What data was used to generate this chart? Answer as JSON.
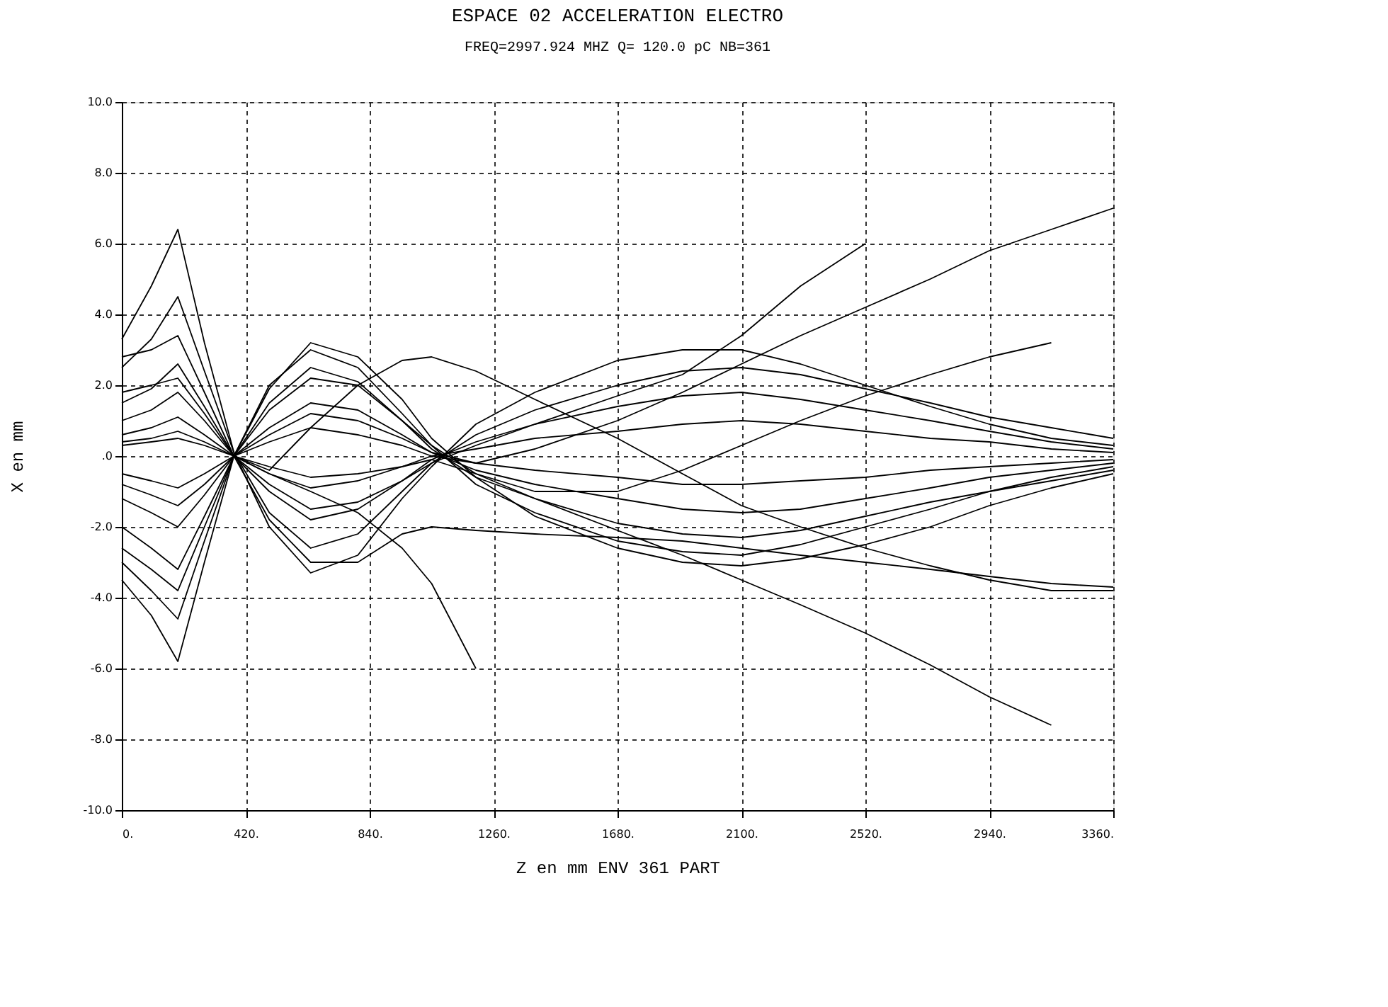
{
  "chart_data": {
    "type": "line",
    "title": "ESPACE 02 ACCELERATION ELECTRO",
    "subtitle": "FREQ=2997.924 MHZ  Q=  120.0 pC  NB=361",
    "xlabel": "Z en mm  ENV 361 PART",
    "ylabel": "X en mm",
    "x": [
      0,
      100,
      190,
      280,
      380,
      500,
      640,
      800,
      950,
      1050,
      1200,
      1400,
      1680,
      1900,
      2100,
      2300,
      2520,
      2740,
      2940,
      3150,
      3360
    ],
    "series": [
      {
        "color": "#000000",
        "values": [
          3.3,
          4.8,
          6.4,
          3.2,
          0.1,
          -2.0,
          -3.3,
          -2.8,
          -1.2,
          -0.3,
          0.9,
          1.8,
          2.7,
          3.0,
          3.0,
          2.6,
          2.0,
          1.4,
          0.9,
          0.5,
          0.3
        ]
      },
      {
        "color": "#000000",
        "values": [
          -3.5,
          -4.5,
          -5.8,
          -3.0,
          0.0,
          2.0,
          3.0,
          2.5,
          1.2,
          0.3,
          -0.8,
          -1.6,
          -2.4,
          -2.7,
          -2.8,
          -2.5,
          -2.0,
          -1.5,
          -1.0,
          -0.6,
          -0.3
        ]
      },
      {
        "color": "#000000",
        "values": [
          2.5,
          3.3,
          4.5,
          2.4,
          0.1,
          -1.6,
          -2.6,
          -2.2,
          -1.0,
          -0.2,
          0.6,
          1.3,
          2.0,
          2.4,
          2.5,
          2.3,
          1.9,
          1.5,
          1.1,
          0.8,
          0.5
        ]
      },
      {
        "color": "#000000",
        "values": [
          -2.6,
          -3.2,
          -3.8,
          -2.0,
          0.0,
          1.5,
          2.5,
          2.1,
          1.0,
          0.2,
          -0.6,
          -1.2,
          -1.9,
          -2.2,
          -2.3,
          -2.1,
          -1.7,
          -1.3,
          -1.0,
          -0.7,
          -0.4
        ]
      },
      {
        "color": "#000000",
        "values": [
          1.5,
          1.9,
          2.6,
          1.4,
          0.0,
          -1.0,
          -1.8,
          -1.5,
          -0.7,
          -0.1,
          0.4,
          0.9,
          1.4,
          1.7,
          1.8,
          1.6,
          1.3,
          1.0,
          0.7,
          0.4,
          0.2
        ]
      },
      {
        "color": "#000000",
        "values": [
          -1.2,
          -1.6,
          -2.0,
          -1.1,
          0.0,
          0.8,
          1.5,
          1.3,
          0.6,
          0.1,
          -0.4,
          -0.8,
          -1.2,
          -1.5,
          -1.6,
          -1.5,
          -1.2,
          -0.9,
          -0.6,
          -0.4,
          -0.2
        ]
      },
      {
        "color": "#000000",
        "values": [
          0.6,
          0.8,
          1.1,
          0.6,
          0.0,
          -0.5,
          -0.9,
          -0.7,
          -0.3,
          0.0,
          0.2,
          0.5,
          0.7,
          0.9,
          1.0,
          0.9,
          0.7,
          0.5,
          0.4,
          0.2,
          0.1
        ]
      },
      {
        "color": "#000000",
        "values": [
          -0.5,
          -0.7,
          -0.9,
          -0.5,
          0.0,
          0.4,
          0.8,
          0.6,
          0.3,
          0.0,
          -0.2,
          -0.4,
          -0.6,
          -0.8,
          -0.8,
          -0.7,
          -0.6,
          -0.4,
          -0.3,
          -0.2,
          -0.1
        ]
      },
      {
        "color": "#000000",
        "values": [
          1.0,
          1.3,
          1.8,
          1.0,
          0.0,
          -0.8,
          -1.5,
          -1.3,
          -0.7,
          -0.2,
          0.3,
          0.9,
          1.7,
          2.3,
          3.4,
          4.8,
          6.0,
          null,
          null,
          null,
          null
        ]
      },
      {
        "color": "#000000",
        "values": [
          -0.8,
          -1.1,
          -1.4,
          -0.8,
          0.0,
          0.6,
          1.2,
          1.0,
          0.5,
          0.1,
          -0.2,
          0.2,
          1.0,
          1.8,
          2.6,
          3.4,
          4.2,
          5.0,
          5.8,
          6.4,
          7.0
        ]
      },
      {
        "color": "#000000",
        "values": [
          0.4,
          0.5,
          0.7,
          0.4,
          0.0,
          -0.3,
          -0.6,
          -0.5,
          -0.3,
          -0.1,
          -0.5,
          -1.2,
          -2.1,
          -2.8,
          -3.5,
          -4.2,
          -5.0,
          -5.9,
          -6.8,
          -7.6,
          null
        ]
      },
      {
        "color": "#000000",
        "values": [
          0.3,
          0.4,
          0.5,
          0.3,
          0.0,
          -0.5,
          -1.0,
          -1.6,
          -2.6,
          -3.6,
          -6.0,
          null,
          null,
          null,
          null,
          null,
          null,
          null,
          null,
          null,
          null
        ]
      },
      {
        "color": "#000000",
        "values": [
          -2.0,
          -2.6,
          -3.2,
          -1.7,
          0.0,
          1.3,
          2.2,
          2.0,
          1.0,
          0.3,
          -0.5,
          -1.0,
          -1.0,
          -0.4,
          0.3,
          1.0,
          1.7,
          2.3,
          2.8,
          3.2,
          null
        ]
      },
      {
        "color": "#000000",
        "values": [
          1.8,
          2.0,
          2.2,
          1.2,
          0.0,
          -0.4,
          0.8,
          2.0,
          2.7,
          2.8,
          2.4,
          1.6,
          0.5,
          -0.5,
          -1.4,
          -2.0,
          -2.6,
          -3.1,
          -3.5,
          -3.8,
          -3.8
        ]
      },
      {
        "color": "#000000",
        "values": [
          2.8,
          3.0,
          3.4,
          1.8,
          0.0,
          -1.8,
          -3.0,
          -3.0,
          -2.2,
          -2.0,
          -2.1,
          -2.2,
          -2.3,
          -2.4,
          -2.6,
          -2.8,
          -3.0,
          -3.2,
          -3.4,
          -3.6,
          -3.7
        ]
      },
      {
        "color": "#000000",
        "values": [
          -3.0,
          -3.8,
          -4.6,
          -2.4,
          0.0,
          1.9,
          3.2,
          2.8,
          1.6,
          0.5,
          -0.6,
          -1.7,
          -2.6,
          -3.0,
          -3.1,
          -2.9,
          -2.5,
          -2.0,
          -1.4,
          -0.9,
          -0.5
        ]
      }
    ],
    "xlim": [
      0,
      3360
    ],
    "xticks": [
      {
        "value": 0,
        "label": "0."
      },
      {
        "value": 420,
        "label": "420."
      },
      {
        "value": 840,
        "label": "840."
      },
      {
        "value": 1260,
        "label": "1260."
      },
      {
        "value": 1680,
        "label": "1680."
      },
      {
        "value": 2100,
        "label": "2100."
      },
      {
        "value": 2520,
        "label": "2520."
      },
      {
        "value": 2940,
        "label": "2940."
      },
      {
        "value": 3360,
        "label": "3360."
      }
    ],
    "ylim": [
      -10,
      10
    ],
    "yticks": [
      {
        "value": -10,
        "label": "-10.0"
      },
      {
        "value": -8,
        "label": "-8.0"
      },
      {
        "value": -6,
        "label": "-6.0"
      },
      {
        "value": -4,
        "label": "-4.0"
      },
      {
        "value": -2,
        "label": "-2.0"
      },
      {
        "value": 0,
        "label": ".0"
      },
      {
        "value": 2,
        "label": "2.0"
      },
      {
        "value": 4,
        "label": "4.0"
      },
      {
        "value": 6,
        "label": "6.0"
      },
      {
        "value": 8,
        "label": "8.0"
      },
      {
        "value": 10,
        "label": "10.0"
      }
    ],
    "grid": true,
    "legend": false,
    "marker": "none",
    "line_style": "solid"
  }
}
